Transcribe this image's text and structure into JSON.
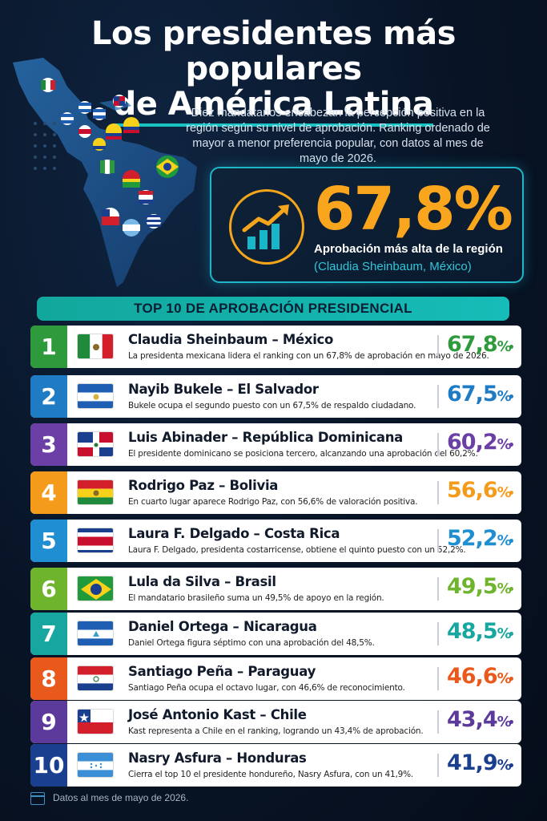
{
  "title": {
    "line1": "Los presidentes más populares",
    "line2": "de América Latina"
  },
  "subtitle": "Diez mandatarios encabezan la percepción positiva en la región según su nivel de aprobación. Ranking ordenado de mayor a menor preferencia popular, con datos al mes de mayo de 2026.",
  "highlight": {
    "value": "67,8%",
    "label": "Aprobación más alta de la región",
    "sub": "(Claudia Sheinbaum, México)",
    "icon": "growth-chart-icon"
  },
  "banner": "TOP 10 DE APROBACIÓN PRESIDENCIAL",
  "ranking": [
    {
      "rank": "1",
      "name": "Claudia Sheinbaum – México",
      "desc": "La presidenta mexicana lidera el ranking con un 67,8% de aprobación en mayo de 2026.",
      "value": "67,8",
      "unit": "%",
      "color": "#2f9a3c",
      "flag": "mexico-flag-icon"
    },
    {
      "rank": "2",
      "name": "Nayib Bukele – El Salvador",
      "desc": "Bukele ocupa el segundo puesto con un 67,5% de respaldo ciudadano.",
      "value": "67,5",
      "unit": "%",
      "color": "#1e7bc4",
      "flag": "el-salvador-flag-icon"
    },
    {
      "rank": "3",
      "name": "Luis Abinader – República Dominicana",
      "desc": "El presidente dominicano se posiciona tercero, alcanzando una aprobación del 60,2%.",
      "value": "60,2",
      "unit": "%",
      "color": "#6b3fa5",
      "flag": "dominican-republic-flag-icon"
    },
    {
      "rank": "4",
      "name": "Rodrigo Paz – Bolivia",
      "desc": "En cuarto lugar aparece Rodrigo Paz, con 56,6% de valoración positiva.",
      "value": "56,6",
      "unit": "%",
      "color": "#f49b1b",
      "flag": "bolivia-flag-icon"
    },
    {
      "rank": "5",
      "name": "Laura F. Delgado – Costa Rica",
      "desc": "Laura F. Delgado, presidenta costarricense, obtiene el quinto puesto con un 52,2%.",
      "value": "52,2",
      "unit": "%",
      "color": "#1f8fd1",
      "flag": "costa-rica-flag-icon"
    },
    {
      "rank": "6",
      "name": "Lula da Silva – Brasil",
      "desc": "El mandatario brasileño suma un 49,5% de apoyo en la región.",
      "value": "49,5",
      "unit": "%",
      "color": "#6fb42d",
      "flag": "brazil-flag-icon"
    },
    {
      "rank": "7",
      "name": "Daniel Ortega – Nicaragua",
      "desc": "Daniel Ortega figura séptimo con una aprobación del 48,5%.",
      "value": "48,5",
      "unit": "%",
      "color": "#18a6a0",
      "flag": "nicaragua-flag-icon"
    },
    {
      "rank": "8",
      "name": "Santiago Peña – Paraguay",
      "desc": "Santiago Peña ocupa el octavo lugar, con 46,6% de reconocimiento.",
      "value": "46,6",
      "unit": "%",
      "color": "#e9591c",
      "flag": "paraguay-flag-icon"
    },
    {
      "rank": "9",
      "name": "José Antonio Kast – Chile",
      "desc": "Kast representa a Chile en el ranking, logrando un 43,4% de aprobación.",
      "value": "43,4",
      "unit": "%",
      "color": "#5c3a9c",
      "flag": "chile-flag-icon"
    },
    {
      "rank": "10",
      "name": "Nasry Asfura – Honduras",
      "desc": "Cierra el top 10 el presidente hondureño, Nasry Asfura, con un 41,9%.",
      "value": "41,9",
      "unit": "%",
      "color": "#1b3f8f",
      "flag": "honduras-flag-icon"
    }
  ],
  "footer": "Datos al mes de mayo de 2026."
}
